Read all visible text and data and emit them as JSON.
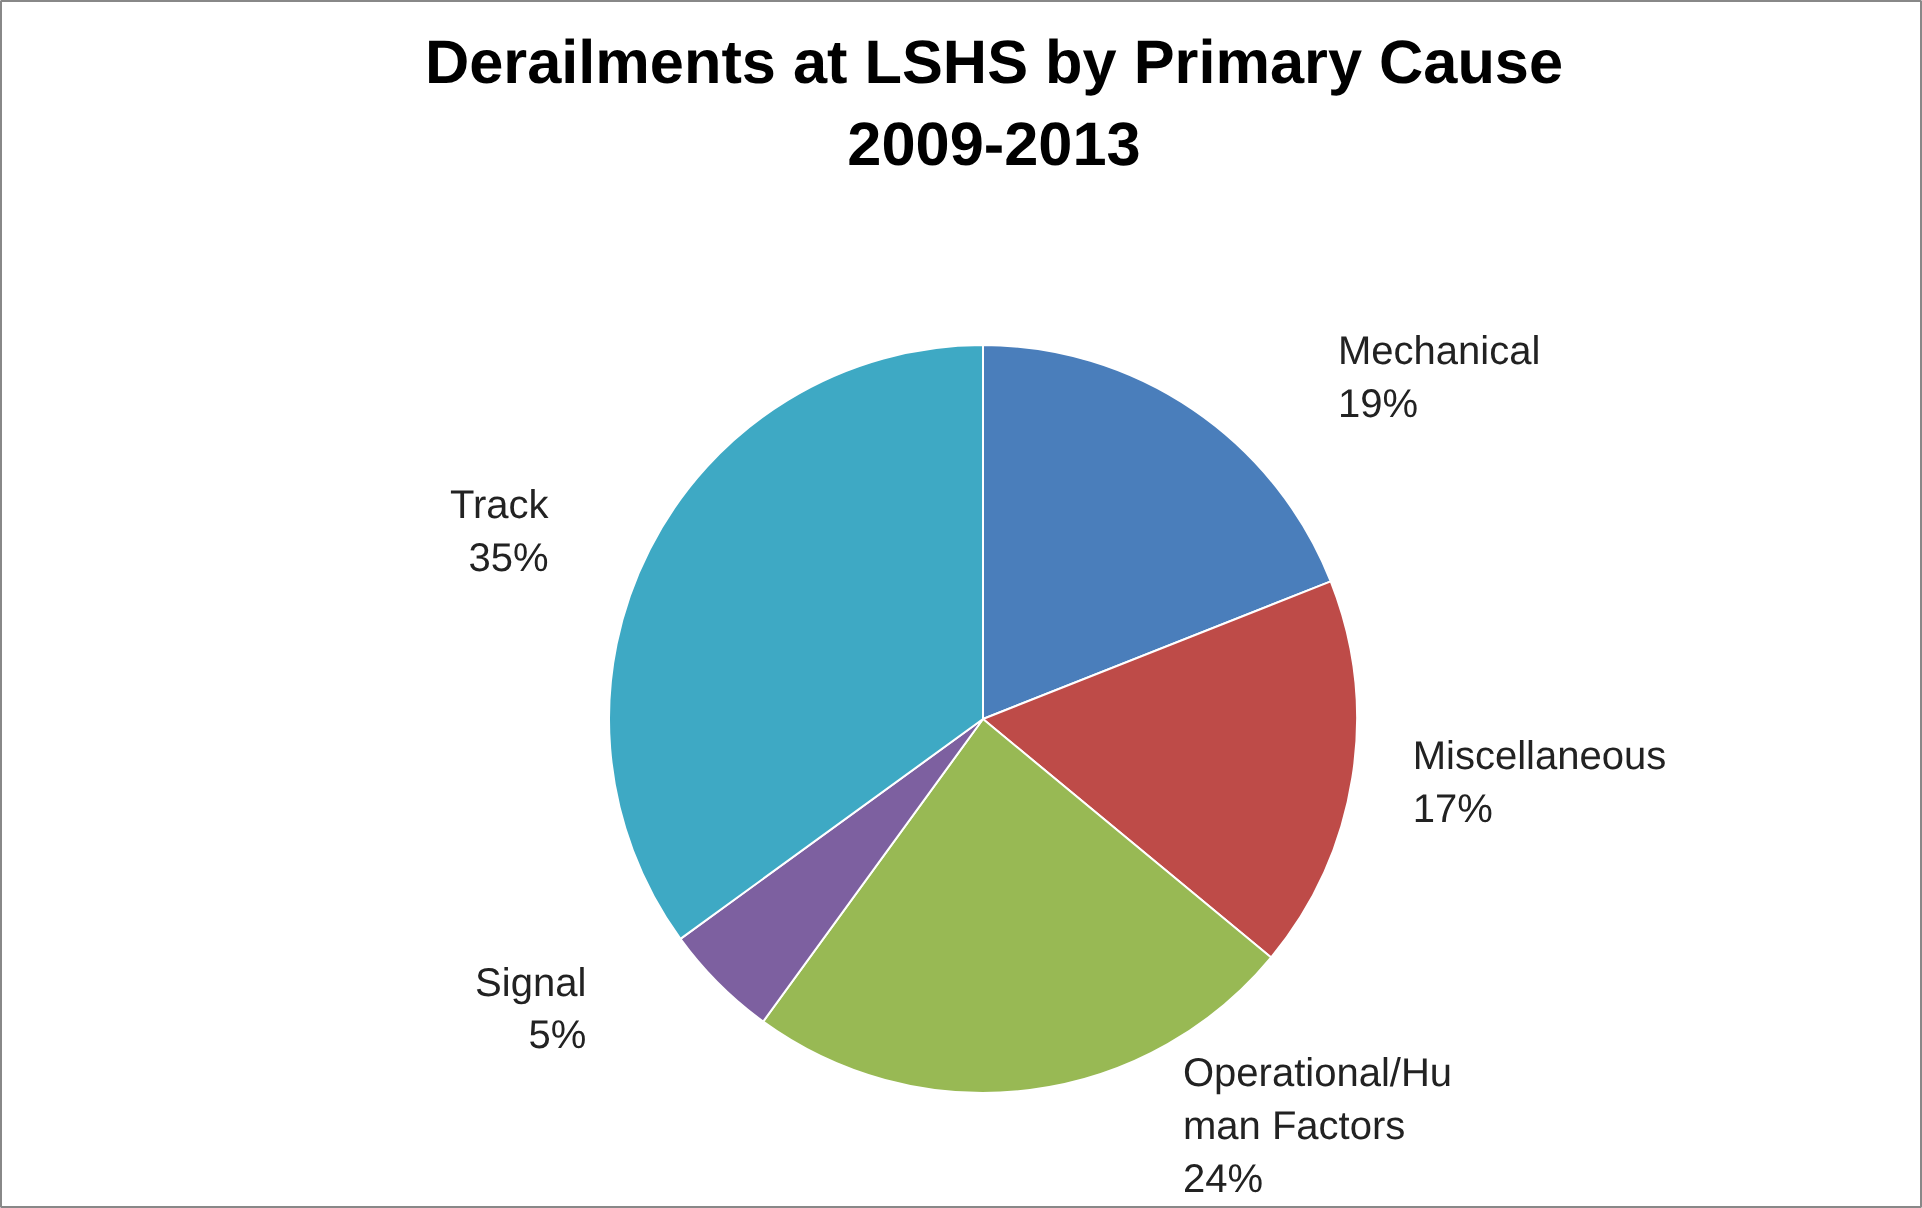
{
  "chart_data": {
    "type": "pie",
    "title": "Derailments at LSHS by Primary Cause\n2009-2013",
    "categories": [
      "Mechanical",
      "Miscellaneous",
      "Operational/Human Factors",
      "Signal",
      "Track"
    ],
    "values": [
      19,
      17,
      24,
      5,
      35
    ],
    "colors": [
      "#4a7ebb",
      "#be4b48",
      "#98b954",
      "#7d60a0",
      "#3ea9c4"
    ],
    "value_labels": [
      "19%",
      "17%",
      "24%",
      "5%",
      "35%"
    ]
  }
}
